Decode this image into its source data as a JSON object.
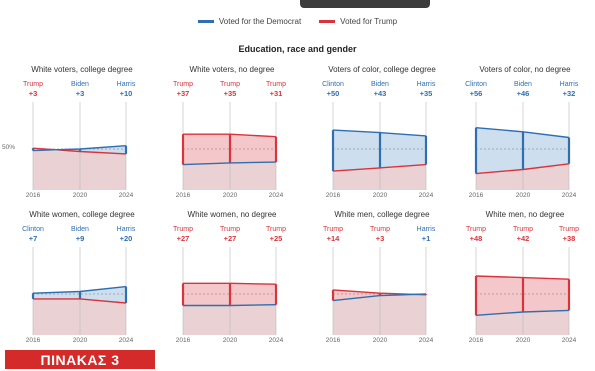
{
  "legend": {
    "dem_label": "Voted for the Democrat",
    "trump_label": "Voted for Trump"
  },
  "subtitle": "Education, race and gender",
  "badge": "ΠΙΝΑΚΑΣ 3",
  "colors": {
    "dem": "#2f6fb0",
    "trump": "#d9343b",
    "dem_fill": "#c8daec",
    "trump_fill": "#f3c2c4",
    "base_fill": "#e5c9cc"
  },
  "chart_data": [
    {
      "type": "area",
      "title": "White voters, college degree",
      "x": [
        "2016",
        "2020",
        "2024"
      ],
      "margins": [
        {
          "candidate": "Trump",
          "margin": "+3",
          "party": "rep"
        },
        {
          "candidate": "Biden",
          "margin": "+3",
          "party": "dem"
        },
        {
          "candidate": "Harris",
          "margin": "+10",
          "party": "dem"
        }
      ],
      "series": [
        {
          "name": "Voted for the Democrat",
          "values": [
            48,
            50,
            54
          ]
        },
        {
          "name": "Voted for Trump",
          "values": [
            51,
            47,
            44
          ]
        }
      ],
      "reference_label": "50%",
      "ylim": [
        0,
        100
      ]
    },
    {
      "type": "area",
      "title": "White voters, no degree",
      "x": [
        "2016",
        "2020",
        "2024"
      ],
      "margins": [
        {
          "candidate": "Trump",
          "margin": "+37",
          "party": "rep"
        },
        {
          "candidate": "Trump",
          "margin": "+35",
          "party": "rep"
        },
        {
          "candidate": "Trump",
          "margin": "+31",
          "party": "rep"
        }
      ],
      "series": [
        {
          "name": "Voted for the Democrat",
          "values": [
            31,
            33,
            34
          ]
        },
        {
          "name": "Voted for Trump",
          "values": [
            68,
            68,
            65
          ]
        }
      ],
      "ylim": [
        0,
        100
      ]
    },
    {
      "type": "area",
      "title": "Voters of color, college degree",
      "x": [
        "2016",
        "2020",
        "2024"
      ],
      "margins": [
        {
          "candidate": "Clinton",
          "margin": "+50",
          "party": "dem"
        },
        {
          "candidate": "Biden",
          "margin": "+43",
          "party": "dem"
        },
        {
          "candidate": "Harris",
          "margin": "+35",
          "party": "dem"
        }
      ],
      "series": [
        {
          "name": "Voted for the Democrat",
          "values": [
            73,
            70,
            66
          ]
        },
        {
          "name": "Voted for Trump",
          "values": [
            23,
            27,
            31
          ]
        }
      ],
      "ylim": [
        0,
        100
      ]
    },
    {
      "type": "area",
      "title": "Voters of color, no degree",
      "x": [
        "2016",
        "2020",
        "2024"
      ],
      "margins": [
        {
          "candidate": "Clinton",
          "margin": "+56",
          "party": "dem"
        },
        {
          "candidate": "Biden",
          "margin": "+46",
          "party": "dem"
        },
        {
          "candidate": "Harris",
          "margin": "+32",
          "party": "dem"
        }
      ],
      "series": [
        {
          "name": "Voted for the Democrat",
          "values": [
            76,
            71,
            64
          ]
        },
        {
          "name": "Voted for Trump",
          "values": [
            20,
            25,
            32
          ]
        }
      ],
      "ylim": [
        0,
        100
      ]
    },
    {
      "type": "area",
      "title": "White women, college degree",
      "x": [
        "2016",
        "2020",
        "2024"
      ],
      "margins": [
        {
          "candidate": "Clinton",
          "margin": "+7",
          "party": "dem"
        },
        {
          "candidate": "Biden",
          "margin": "+9",
          "party": "dem"
        },
        {
          "candidate": "Harris",
          "margin": "+20",
          "party": "dem"
        }
      ],
      "series": [
        {
          "name": "Voted for the Democrat",
          "values": [
            51,
            53,
            59
          ]
        },
        {
          "name": "Voted for Trump",
          "values": [
            44,
            44,
            39
          ]
        }
      ],
      "ylim": [
        0,
        100
      ]
    },
    {
      "type": "area",
      "title": "White women, no degree",
      "x": [
        "2016",
        "2020",
        "2024"
      ],
      "margins": [
        {
          "candidate": "Trump",
          "margin": "+27",
          "party": "rep"
        },
        {
          "candidate": "Trump",
          "margin": "+27",
          "party": "rep"
        },
        {
          "candidate": "Trump",
          "margin": "+25",
          "party": "rep"
        }
      ],
      "series": [
        {
          "name": "Voted for the Democrat",
          "values": [
            36,
            36,
            37
          ]
        },
        {
          "name": "Voted for Trump",
          "values": [
            63,
            63,
            62
          ]
        }
      ],
      "ylim": [
        0,
        100
      ]
    },
    {
      "type": "area",
      "title": "White men, college degree",
      "x": [
        "2016",
        "2020",
        "2024"
      ],
      "margins": [
        {
          "candidate": "Trump",
          "margin": "+14",
          "party": "rep"
        },
        {
          "candidate": "Trump",
          "margin": "+3",
          "party": "rep"
        },
        {
          "candidate": "Harris",
          "margin": "+1",
          "party": "dem"
        }
      ],
      "series": [
        {
          "name": "Voted for the Democrat",
          "values": [
            42,
            48,
            50
          ]
        },
        {
          "name": "Voted for Trump",
          "values": [
            55,
            51,
            49
          ]
        }
      ],
      "ylim": [
        0,
        100
      ]
    },
    {
      "type": "area",
      "title": "White men, no degree",
      "x": [
        "2016",
        "2020",
        "2024"
      ],
      "margins": [
        {
          "candidate": "Trump",
          "margin": "+48",
          "party": "rep"
        },
        {
          "candidate": "Trump",
          "margin": "+42",
          "party": "rep"
        },
        {
          "candidate": "Trump",
          "margin": "+38",
          "party": "rep"
        }
      ],
      "series": [
        {
          "name": "Voted for the Democrat",
          "values": [
            24,
            28,
            30
          ]
        },
        {
          "name": "Voted for Trump",
          "values": [
            72,
            70,
            68
          ]
        }
      ],
      "ylim": [
        0,
        100
      ]
    }
  ]
}
